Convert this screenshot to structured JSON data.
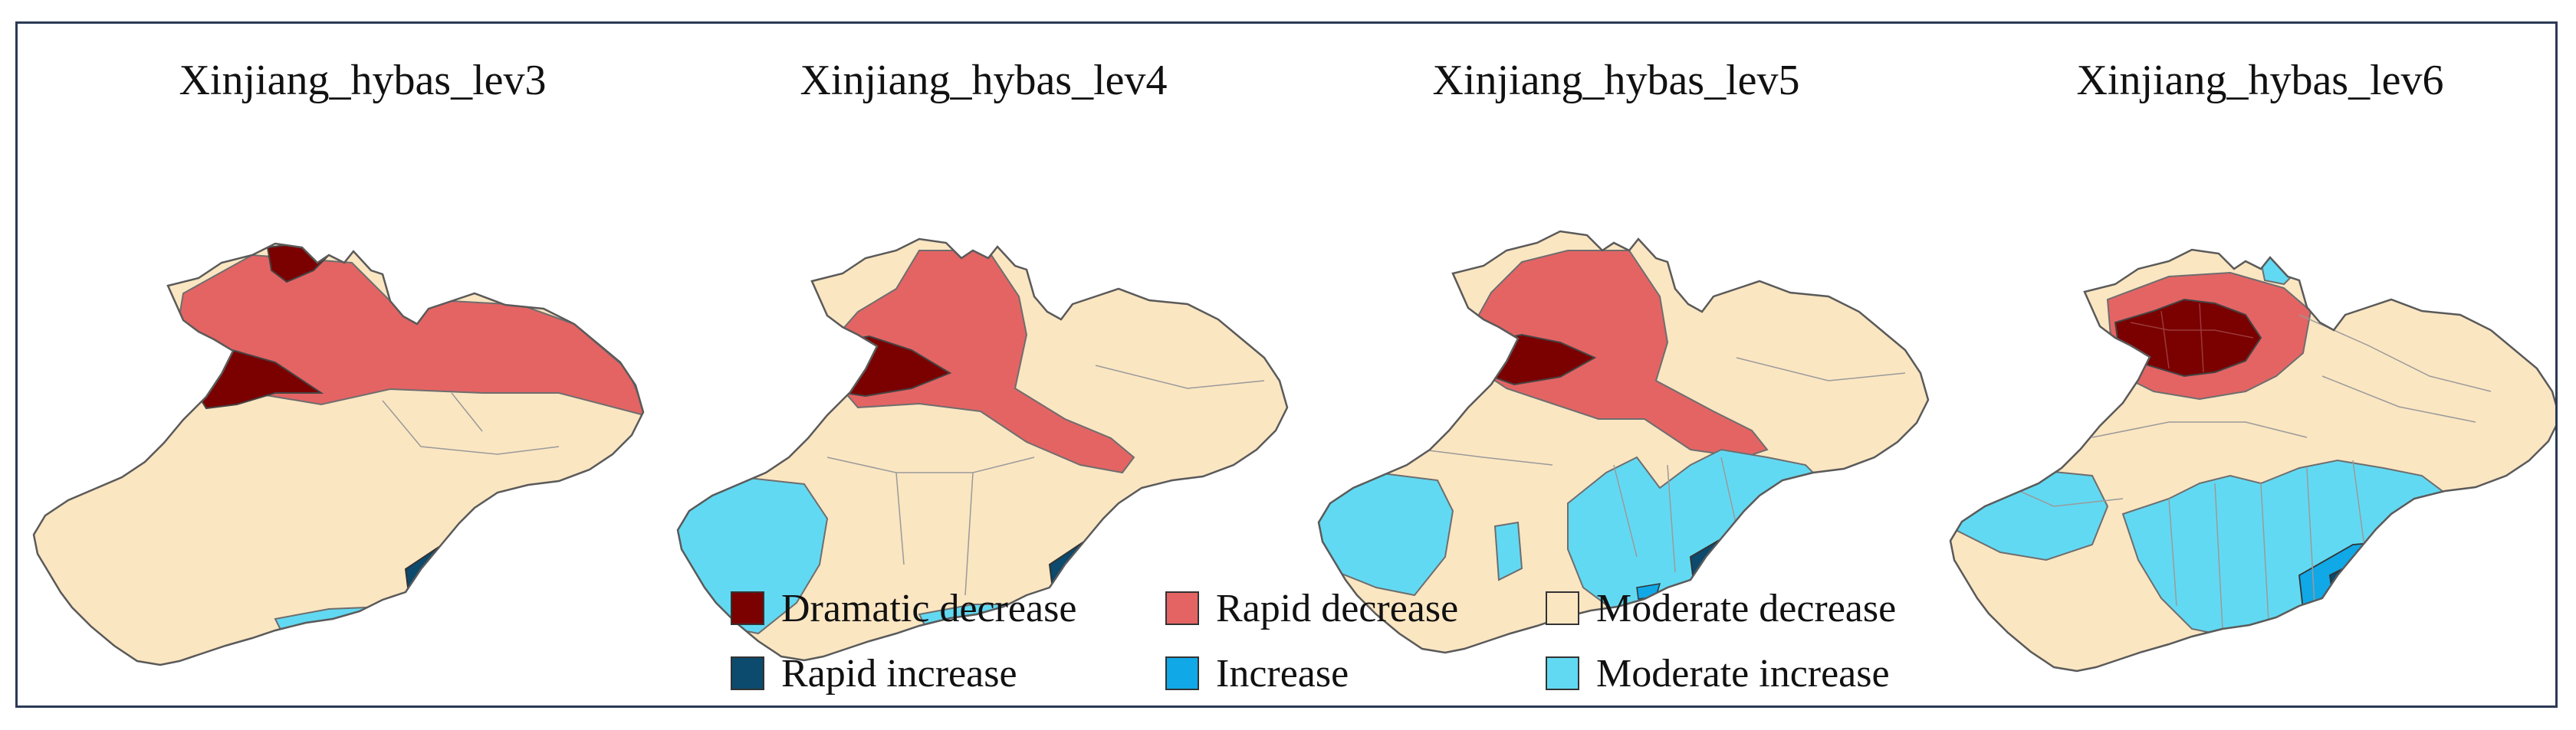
{
  "panels": [
    {
      "title": "Xinjiang_hybas_lev3"
    },
    {
      "title": "Xinjiang_hybas_lev4"
    },
    {
      "title": "Xinjiang_hybas_lev5"
    },
    {
      "title": "Xinjiang_hybas_lev6"
    }
  ],
  "legend": {
    "items": [
      {
        "label": "Dramatic decrease",
        "color": "#7b0000"
      },
      {
        "label": "Rapid decrease",
        "color": "#e46464"
      },
      {
        "label": "Moderate decrease",
        "color": "#fbe6c2"
      },
      {
        "label": "Rapid increase",
        "color": "#0c4a6e"
      },
      {
        "label": "Increase",
        "color": "#10a8e6"
      },
      {
        "label": "Moderate increase",
        "color": "#62d9f2"
      }
    ]
  },
  "colors": {
    "frame": "#2b3a55",
    "outline": "#6e6e6e",
    "dramatic_decrease": "#7b0000",
    "rapid_decrease": "#e46464",
    "moderate_decrease": "#fbe6c2",
    "rapid_increase": "#0c4a6e",
    "increase": "#10a8e6",
    "moderate_increase": "#62d9f2"
  }
}
